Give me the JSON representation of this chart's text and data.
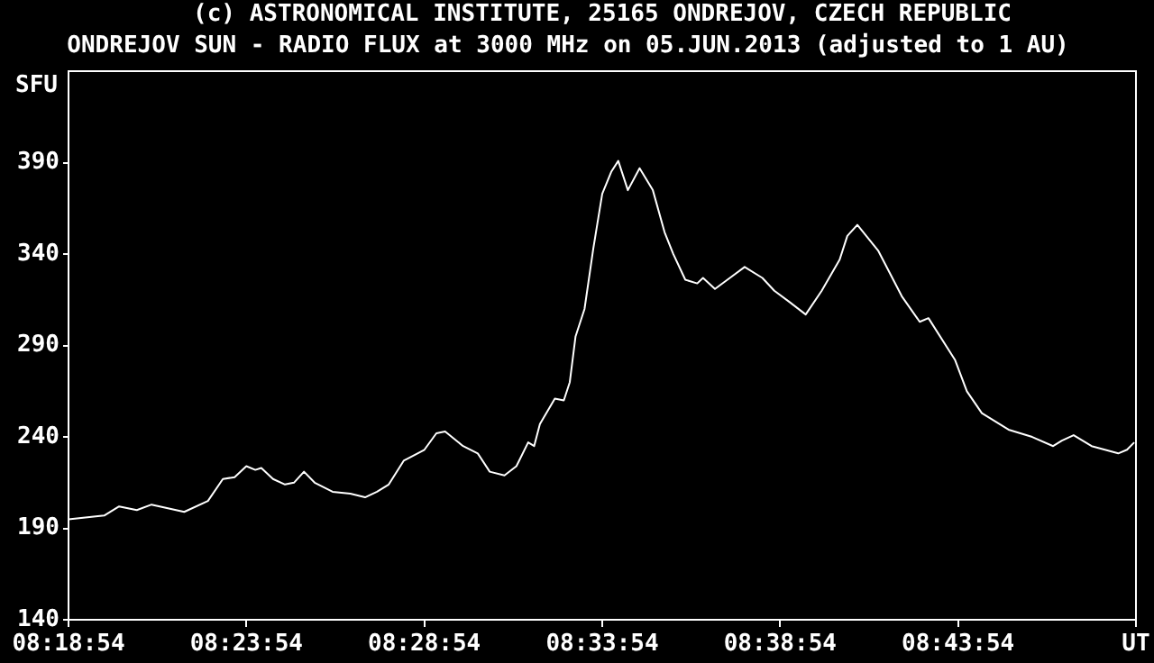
{
  "chart_data": {
    "type": "line",
    "title": "ONDREJOV SUN - RADIO FLUX at 3000 MHz on 05.JUN.2013 (adjusted to 1 AU)",
    "annotations": [
      "(c) ASTRONOMICAL INSTITUTE, 25165 ONDREJOV, CZECH REPUBLIC"
    ],
    "ylabel": "SFU",
    "color": "#ffffff",
    "marker": "none",
    "x": [
      8.315,
      8.3317,
      8.3387,
      8.347,
      8.3539,
      8.3692,
      8.3803,
      8.3873,
      8.3928,
      8.3983,
      8.4025,
      8.4053,
      8.4108,
      8.4164,
      8.4206,
      8.4253,
      8.4303,
      8.4387,
      8.447,
      8.4539,
      8.4595,
      8.465,
      8.472,
      8.4817,
      8.4873,
      8.4914,
      8.4998,
      8.5067,
      8.5123,
      8.5192,
      8.5248,
      8.5303,
      8.5331,
      8.5358,
      8.5428,
      8.547,
      8.5498,
      8.5525,
      8.5567,
      8.5608,
      8.565,
      8.5692,
      8.5725,
      8.577,
      8.5825,
      8.5887,
      8.5942,
      8.5983,
      8.6039,
      8.6095,
      8.6122,
      8.6178,
      8.6248,
      8.6317,
      8.64,
      8.6456,
      8.6525,
      8.6603,
      8.6678,
      8.6762,
      8.6798,
      8.6845,
      8.6942,
      8.7053,
      8.7137,
      8.7178,
      8.7303,
      8.7358,
      8.7428,
      8.7553,
      8.7664,
      8.7762,
      8.7803,
      8.7858,
      8.7942,
      8.8067,
      8.8108,
      8.8142
    ],
    "values": [
      195,
      197,
      202,
      200,
      203,
      199,
      205,
      217,
      218,
      224,
      222,
      223,
      217,
      214,
      215,
      221,
      215,
      210,
      209,
      207,
      210,
      214,
      227,
      233,
      242,
      243,
      235,
      231,
      221,
      219,
      224,
      237,
      235,
      247,
      261,
      260,
      270,
      295,
      310,
      343,
      373,
      385,
      391,
      375,
      387,
      375,
      352,
      340,
      326,
      324,
      327,
      321,
      327,
      333,
      327,
      320,
      314,
      307,
      320,
      337,
      350,
      356,
      342,
      317,
      303,
      305,
      282,
      265,
      253,
      244,
      240,
      235,
      238,
      241,
      235,
      231,
      233,
      237
    ],
    "xlim": [
      8.315,
      8.815
    ],
    "ylim": [
      140,
      440
    ],
    "xticks": [
      {
        "value": 8.315,
        "label": "08:18:54"
      },
      {
        "value": 8.398333,
        "label": "08:23:54"
      },
      {
        "value": 8.481667,
        "label": "08:28:54"
      },
      {
        "value": 8.565,
        "label": "08:33:54"
      },
      {
        "value": 8.648333,
        "label": "08:38:54"
      },
      {
        "value": 8.731667,
        "label": "08:43:54"
      },
      {
        "value": 8.815,
        "label": "UT"
      }
    ],
    "yticks": [
      140,
      190,
      240,
      290,
      340,
      390
    ]
  }
}
